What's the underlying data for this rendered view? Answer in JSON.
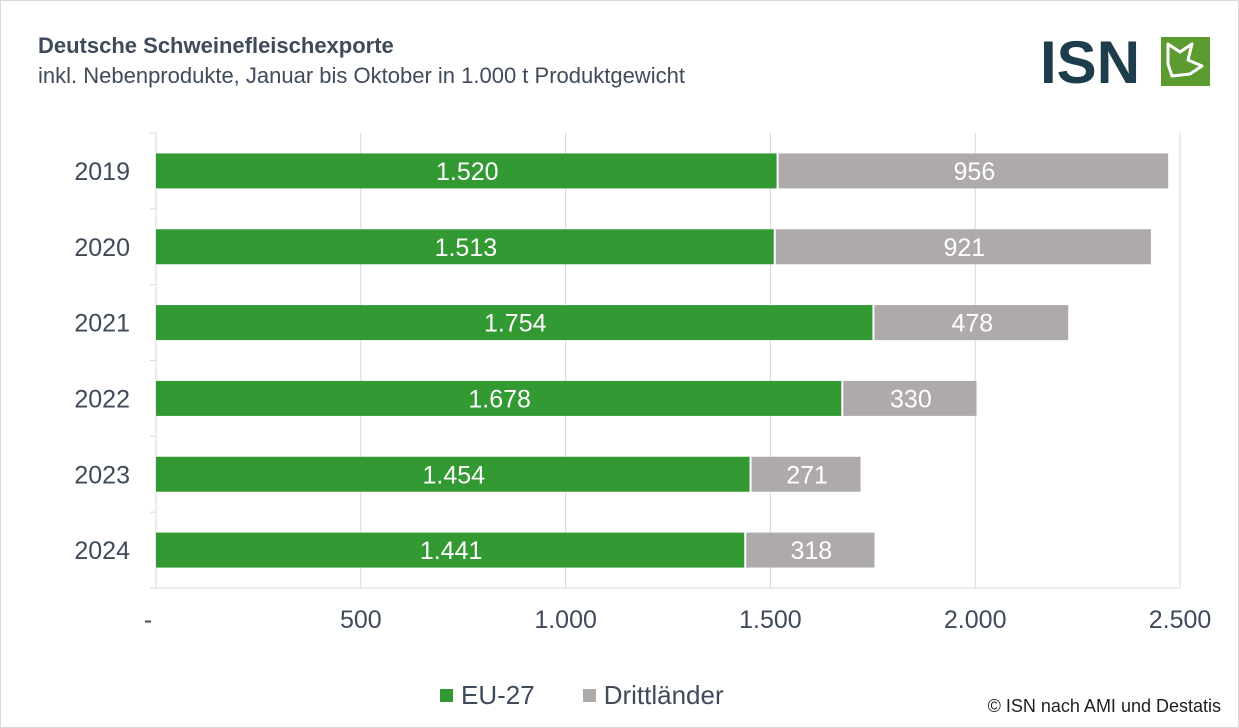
{
  "header": {
    "title": "Deutsche Schweinefleischexporte",
    "subtitle": "inkl. Nebenprodukte, Januar bis Oktober in 1.000 t Produktgewicht"
  },
  "logo": {
    "text": "ISN",
    "icon": "pig-head-icon",
    "text_color": "#1e3d4c",
    "icon_color": "#5b9b2f"
  },
  "chart_data": {
    "type": "bar",
    "orientation": "horizontal",
    "stacked": true,
    "categories": [
      "2019",
      "2020",
      "2021",
      "2022",
      "2023",
      "2024"
    ],
    "series": [
      {
        "name": "EU-27",
        "values": [
          1520,
          1513,
          1754,
          1678,
          1454,
          1441
        ],
        "labels": [
          "1.520",
          "1.513",
          "1.754",
          "1.678",
          "1.454",
          "1.441"
        ],
        "color": "#339933"
      },
      {
        "name": "Drittländer",
        "values": [
          956,
          921,
          478,
          330,
          271,
          318
        ],
        "labels": [
          "956",
          "921",
          "478",
          "330",
          "271",
          "318"
        ],
        "color": "#aeaaaa"
      }
    ],
    "xlim": [
      0,
      2500
    ],
    "xticks": [
      0,
      500,
      1000,
      1500,
      2000,
      2500
    ],
    "xtick_labels": [
      "-",
      "500",
      "1.000",
      "1.500",
      "2.000",
      "2.500"
    ],
    "grid": true,
    "legend_position": "bottom"
  },
  "source": "© ISN nach AMI und Destatis"
}
